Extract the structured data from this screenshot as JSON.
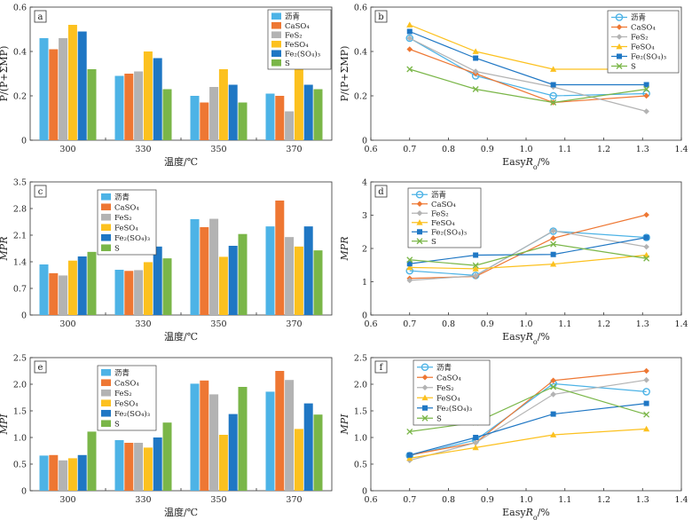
{
  "series_colors": [
    "#4db3e6",
    "#ee7733",
    "#b3b3b3",
    "#fcc11f",
    "#1f77c4",
    "#7ab648"
  ],
  "chart_data": [
    {
      "id": "a",
      "type": "bar",
      "panel_label": "a",
      "categories": [
        "300",
        "330",
        "350",
        "370"
      ],
      "xlabel": "温度/℃",
      "ylabel": "P/(P+ΣMP)",
      "ylim": [
        0,
        0.6
      ],
      "yticks": [
        "0",
        "0.2",
        "0.4",
        "0.6"
      ],
      "legend_position": "top-right",
      "series": [
        {
          "name": "沥青",
          "values": [
            0.46,
            0.29,
            0.2,
            0.21
          ]
        },
        {
          "name": "CaSO₄",
          "values": [
            0.41,
            0.3,
            0.17,
            0.2
          ]
        },
        {
          "name": "FeS₂",
          "values": [
            0.46,
            0.31,
            0.24,
            0.13
          ]
        },
        {
          "name": "FeSO₄",
          "values": [
            0.52,
            0.4,
            0.32,
            0.32
          ]
        },
        {
          "name": "Fe₂(SO₄)₃",
          "values": [
            0.49,
            0.37,
            0.25,
            0.25
          ]
        },
        {
          "name": "S",
          "values": [
            0.32,
            0.23,
            0.17,
            0.23
          ]
        }
      ]
    },
    {
      "id": "b",
      "type": "line",
      "panel_label": "b",
      "x": [
        0.7,
        0.87,
        1.07,
        1.31
      ],
      "xlabel": "EasyRo/%",
      "ylabel": "P/(P+ΣMP)",
      "xlim": [
        0.6,
        1.4
      ],
      "ylim": [
        0,
        0.6
      ],
      "xticks": [
        "0.6",
        "0.7",
        "0.8",
        "0.9",
        "1.0",
        "1.1",
        "1.2",
        "1.3",
        "1.4"
      ],
      "yticks": [
        "0",
        "0.2",
        "0.4",
        "0.6"
      ],
      "legend_position": "top-right",
      "series": [
        {
          "name": "沥青",
          "values": [
            0.46,
            0.29,
            0.2,
            0.21
          ]
        },
        {
          "name": "CaSO₄",
          "values": [
            0.41,
            0.3,
            0.17,
            0.2
          ]
        },
        {
          "name": "FeS₂",
          "values": [
            0.46,
            0.31,
            0.24,
            0.13
          ]
        },
        {
          "name": "FeSO₄",
          "values": [
            0.52,
            0.4,
            0.32,
            0.32
          ]
        },
        {
          "name": "Fe₂(SO₄)₃",
          "values": [
            0.49,
            0.37,
            0.25,
            0.25
          ]
        },
        {
          "name": "S",
          "values": [
            0.32,
            0.23,
            0.17,
            0.23
          ]
        }
      ]
    },
    {
      "id": "c",
      "type": "bar",
      "panel_label": "c",
      "categories": [
        "300",
        "330",
        "350",
        "370"
      ],
      "xlabel": "温度/℃",
      "ylabel": "MPR",
      "ylim": [
        0,
        3.5
      ],
      "yticks": [
        "0",
        "0.7",
        "1.4",
        "2.1",
        "2.8",
        "3.5"
      ],
      "legend_position": "top-left",
      "series": [
        {
          "name": "沥青",
          "values": [
            1.33,
            1.19,
            2.52,
            2.33
          ]
        },
        {
          "name": "CaSO₄",
          "values": [
            1.1,
            1.16,
            2.31,
            3.01
          ]
        },
        {
          "name": "FeS₂",
          "values": [
            1.04,
            1.18,
            2.53,
            2.05
          ]
        },
        {
          "name": "FeSO₄",
          "values": [
            1.43,
            1.39,
            1.53,
            1.8
          ]
        },
        {
          "name": "Fe₂(SO₄)₃",
          "values": [
            1.54,
            1.8,
            1.82,
            2.33
          ]
        },
        {
          "name": "S",
          "values": [
            1.66,
            1.49,
            2.13,
            1.7
          ]
        }
      ]
    },
    {
      "id": "d",
      "type": "line",
      "panel_label": "d",
      "x": [
        0.7,
        0.87,
        1.07,
        1.31
      ],
      "xlabel": "EasyRo/%",
      "ylabel": "MPR",
      "xlim": [
        0.6,
        1.4
      ],
      "ylim": [
        0,
        4
      ],
      "xticks": [
        "0.6",
        "0.7",
        "0.8",
        "0.9",
        "1.0",
        "1.1",
        "1.2",
        "1.3",
        "1.4"
      ],
      "yticks": [
        "0",
        "1",
        "2",
        "3",
        "4"
      ],
      "legend_position": "top-left",
      "series": [
        {
          "name": "沥青",
          "values": [
            1.33,
            1.19,
            2.52,
            2.33
          ]
        },
        {
          "name": "CaSO₄",
          "values": [
            1.1,
            1.16,
            2.31,
            3.01
          ]
        },
        {
          "name": "FeS₂",
          "values": [
            1.04,
            1.18,
            2.53,
            2.05
          ]
        },
        {
          "name": "FeSO₄",
          "values": [
            1.43,
            1.39,
            1.53,
            1.8
          ]
        },
        {
          "name": "Fe₂(SO₄)₃",
          "values": [
            1.54,
            1.8,
            1.82,
            2.33
          ]
        },
        {
          "name": "S",
          "values": [
            1.66,
            1.49,
            2.13,
            1.7
          ]
        }
      ]
    },
    {
      "id": "e",
      "type": "bar",
      "panel_label": "e",
      "categories": [
        "300",
        "330",
        "350",
        "370"
      ],
      "xlabel": "温度/℃",
      "ylabel": "MPI",
      "ylim": [
        0,
        2.5
      ],
      "yticks": [
        "0",
        "0.5",
        "1.0",
        "1.5",
        "2.0",
        "2.5"
      ],
      "legend_position": "top-left",
      "series": [
        {
          "name": "沥青",
          "values": [
            0.66,
            0.95,
            2.01,
            1.86
          ]
        },
        {
          "name": "CaSO₄",
          "values": [
            0.67,
            0.9,
            2.07,
            2.25
          ]
        },
        {
          "name": "FeS₂",
          "values": [
            0.57,
            0.9,
            1.81,
            2.08
          ]
        },
        {
          "name": "FeSO₄",
          "values": [
            0.61,
            0.81,
            1.05,
            1.16
          ]
        },
        {
          "name": "Fe₂(SO₄)₃",
          "values": [
            0.67,
            1.0,
            1.44,
            1.64
          ]
        },
        {
          "name": "S",
          "values": [
            1.11,
            1.28,
            1.95,
            1.43
          ]
        }
      ]
    },
    {
      "id": "f",
      "type": "line",
      "panel_label": "f",
      "x": [
        0.7,
        0.87,
        1.07,
        1.31
      ],
      "xlabel": "EasyRo/%",
      "ylabel": "MPI",
      "xlim": [
        0.6,
        1.4
      ],
      "ylim": [
        0,
        2.5
      ],
      "xticks": [
        "0.6",
        "0.7",
        "0.8",
        "0.9",
        "1.0",
        "1.1",
        "1.2",
        "1.3",
        "1.4"
      ],
      "yticks": [
        "0",
        "0.5",
        "1.0",
        "1.5",
        "2.0",
        "2.5"
      ],
      "legend_position": "top-left",
      "series": [
        {
          "name": "沥青",
          "values": [
            0.66,
            0.95,
            2.01,
            1.86
          ]
        },
        {
          "name": "CaSO₄",
          "values": [
            0.67,
            0.9,
            2.07,
            2.25
          ]
        },
        {
          "name": "FeS₂",
          "values": [
            0.57,
            0.9,
            1.81,
            2.08
          ]
        },
        {
          "name": "FeSO₄",
          "values": [
            0.61,
            0.81,
            1.05,
            1.16
          ]
        },
        {
          "name": "Fe₂(SO₄)₃",
          "values": [
            0.67,
            1.0,
            1.44,
            1.64
          ]
        },
        {
          "name": "S",
          "values": [
            1.11,
            1.28,
            1.95,
            1.43
          ]
        }
      ]
    }
  ]
}
